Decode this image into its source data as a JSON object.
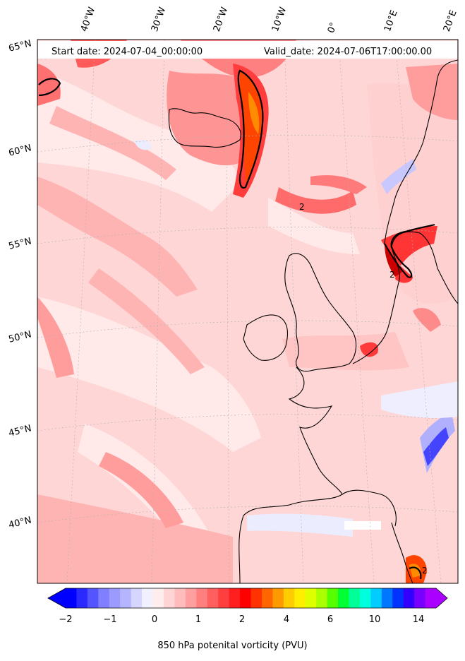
{
  "map": {
    "header_left": "Start date: 2024-07-04_00:00:00",
    "header_right": "Valid_date: 2024-07-06T17:00:00.00",
    "lon_labels": [
      "40°W",
      "30°W",
      "20°W",
      "10°W",
      "0°",
      "10°E",
      "20°E"
    ],
    "lat_labels": [
      "65°N",
      "60°N",
      "55°N",
      "50°N",
      "45°N",
      "40°N"
    ],
    "contour_label": "2",
    "colorbar": {
      "label": "850 hPa potenital vorticity (PVU)",
      "ticks": [
        "−2",
        "−1",
        "0",
        "1",
        "2",
        "4",
        "6",
        "10",
        "14"
      ],
      "colors": [
        "#0000ff",
        "#2a2aff",
        "#5555ff",
        "#7f7fff",
        "#9a9aff",
        "#b5b5ff",
        "#d5d5ff",
        "#f0f0ff",
        "#ffecec",
        "#ffd4d4",
        "#ffbcbc",
        "#ff9f9f",
        "#ff7f7f",
        "#ff5f5f",
        "#ff3f3f",
        "#ff1f1f",
        "#ff0000",
        "#ff3300",
        "#ff6600",
        "#ff9900",
        "#ffcc00",
        "#ffee00",
        "#ddff00",
        "#aaff00",
        "#55ff00",
        "#00ff33",
        "#00ff99",
        "#00ffdd",
        "#00ccff",
        "#0077ff",
        "#0033ff",
        "#3300ff",
        "#7700ff",
        "#aa00ff"
      ]
    }
  }
}
